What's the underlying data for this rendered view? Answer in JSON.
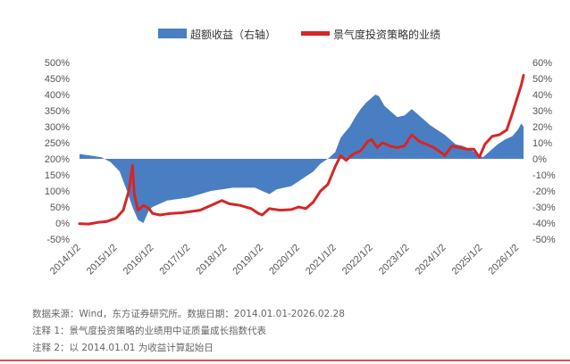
{
  "chart_data": {
    "type": "area+line",
    "legend": [
      "超额收益（右轴）",
      "景气度投资策略的业绩"
    ],
    "colors": {
      "excess": "#4a7ec3",
      "strategy": "#d62626"
    },
    "x_labels": [
      "2014/1/2",
      "2015/1/2",
      "2016/1/2",
      "2017/1/2",
      "2018/1/2",
      "2019/1/2",
      "2020/1/2",
      "2021/1/2",
      "2022/1/2",
      "2023/1/2",
      "2024/1/2",
      "2025/1/2",
      "2026/1/2"
    ],
    "left_axis": {
      "ticks": [
        "-50%",
        "0%",
        "50%",
        "100%",
        "150%",
        "200%",
        "250%",
        "300%",
        "350%",
        "400%",
        "450%",
        "500%"
      ],
      "min": -50,
      "max": 500
    },
    "right_axis": {
      "ticks": [
        "-50%",
        "-40%",
        "-30%",
        "-20%",
        "-10%",
        "0%",
        "10%",
        "20%",
        "30%",
        "40%",
        "50%",
        "60%"
      ],
      "min": -50,
      "max": 60
    },
    "excess_return_right_axis_pct": [
      [
        2014.0,
        3
      ],
      [
        2014.3,
        2
      ],
      [
        2014.6,
        1
      ],
      [
        2014.85,
        -2
      ],
      [
        2015.1,
        -8
      ],
      [
        2015.3,
        -20
      ],
      [
        2015.45,
        -30
      ],
      [
        2015.6,
        -38
      ],
      [
        2015.75,
        -40
      ],
      [
        2015.9,
        -32
      ],
      [
        2016.0,
        -30
      ],
      [
        2016.2,
        -28
      ],
      [
        2016.4,
        -26
      ],
      [
        2016.7,
        -25
      ],
      [
        2017.0,
        -24
      ],
      [
        2017.3,
        -22
      ],
      [
        2017.6,
        -20
      ],
      [
        2017.9,
        -19
      ],
      [
        2018.2,
        -18
      ],
      [
        2018.5,
        -18
      ],
      [
        2018.8,
        -18
      ],
      [
        2019.0,
        -20
      ],
      [
        2019.2,
        -22
      ],
      [
        2019.4,
        -19
      ],
      [
        2019.6,
        -18
      ],
      [
        2019.8,
        -17
      ],
      [
        2020.0,
        -14
      ],
      [
        2020.2,
        -11
      ],
      [
        2020.4,
        -8
      ],
      [
        2020.6,
        -3
      ],
      [
        2020.8,
        0
      ],
      [
        2021.0,
        4
      ],
      [
        2021.15,
        13
      ],
      [
        2021.25,
        16
      ],
      [
        2021.4,
        20
      ],
      [
        2021.55,
        26
      ],
      [
        2021.7,
        31
      ],
      [
        2021.85,
        35
      ],
      [
        2022.0,
        38
      ],
      [
        2022.1,
        40
      ],
      [
        2022.2,
        39
      ],
      [
        2022.35,
        33
      ],
      [
        2022.5,
        30
      ],
      [
        2022.7,
        26
      ],
      [
        2022.9,
        27
      ],
      [
        2023.1,
        31
      ],
      [
        2023.25,
        28
      ],
      [
        2023.4,
        25
      ],
      [
        2023.6,
        21
      ],
      [
        2023.8,
        18
      ],
      [
        2024.0,
        15
      ],
      [
        2024.15,
        12
      ],
      [
        2024.3,
        9
      ],
      [
        2024.5,
        8
      ],
      [
        2024.7,
        6
      ],
      [
        2024.9,
        3
      ],
      [
        2025.05,
        1
      ],
      [
        2025.25,
        5
      ],
      [
        2025.45,
        9
      ],
      [
        2025.65,
        12
      ],
      [
        2025.85,
        14
      ],
      [
        2026.0,
        18
      ],
      [
        2026.1,
        22
      ],
      [
        2026.16,
        20
      ]
    ],
    "strategy_return_left_axis_pct": [
      [
        2014.0,
        -2
      ],
      [
        2014.25,
        -3
      ],
      [
        2014.5,
        2
      ],
      [
        2014.75,
        5
      ],
      [
        2015.0,
        15
      ],
      [
        2015.2,
        40
      ],
      [
        2015.35,
        100
      ],
      [
        2015.45,
        180
      ],
      [
        2015.5,
        90
      ],
      [
        2015.6,
        40
      ],
      [
        2015.75,
        55
      ],
      [
        2015.9,
        45
      ],
      [
        2016.0,
        30
      ],
      [
        2016.2,
        25
      ],
      [
        2016.5,
        30
      ],
      [
        2016.8,
        32
      ],
      [
        2017.0,
        35
      ],
      [
        2017.3,
        40
      ],
      [
        2017.6,
        55
      ],
      [
        2017.9,
        70
      ],
      [
        2018.1,
        60
      ],
      [
        2018.4,
        55
      ],
      [
        2018.7,
        45
      ],
      [
        2018.9,
        30
      ],
      [
        2019.0,
        25
      ],
      [
        2019.2,
        45
      ],
      [
        2019.5,
        40
      ],
      [
        2019.8,
        42
      ],
      [
        2020.0,
        50
      ],
      [
        2020.2,
        45
      ],
      [
        2020.4,
        65
      ],
      [
        2020.6,
        100
      ],
      [
        2020.8,
        120
      ],
      [
        2021.0,
        175
      ],
      [
        2021.15,
        210
      ],
      [
        2021.3,
        195
      ],
      [
        2021.5,
        215
      ],
      [
        2021.7,
        225
      ],
      [
        2021.9,
        255
      ],
      [
        2022.0,
        260
      ],
      [
        2022.15,
        235
      ],
      [
        2022.3,
        250
      ],
      [
        2022.5,
        240
      ],
      [
        2022.7,
        235
      ],
      [
        2022.9,
        240
      ],
      [
        2023.1,
        275
      ],
      [
        2023.3,
        255
      ],
      [
        2023.5,
        245
      ],
      [
        2023.7,
        235
      ],
      [
        2023.9,
        220
      ],
      [
        2024.0,
        210
      ],
      [
        2024.2,
        240
      ],
      [
        2024.4,
        235
      ],
      [
        2024.6,
        230
      ],
      [
        2024.8,
        230
      ],
      [
        2024.95,
        205
      ],
      [
        2025.1,
        245
      ],
      [
        2025.3,
        270
      ],
      [
        2025.5,
        275
      ],
      [
        2025.7,
        290
      ],
      [
        2025.85,
        340
      ],
      [
        2026.0,
        395
      ],
      [
        2026.1,
        430
      ],
      [
        2026.16,
        460
      ]
    ]
  },
  "footnotes": [
    "数据来源：Wind，东方证券研究所。数据日期：2014.01.01-2026.02.28",
    "注释 1：景气度投资策略的业绩用中证质量成长指数代表",
    "注释 2：以 2014.01.01 为收益计算起始日"
  ]
}
